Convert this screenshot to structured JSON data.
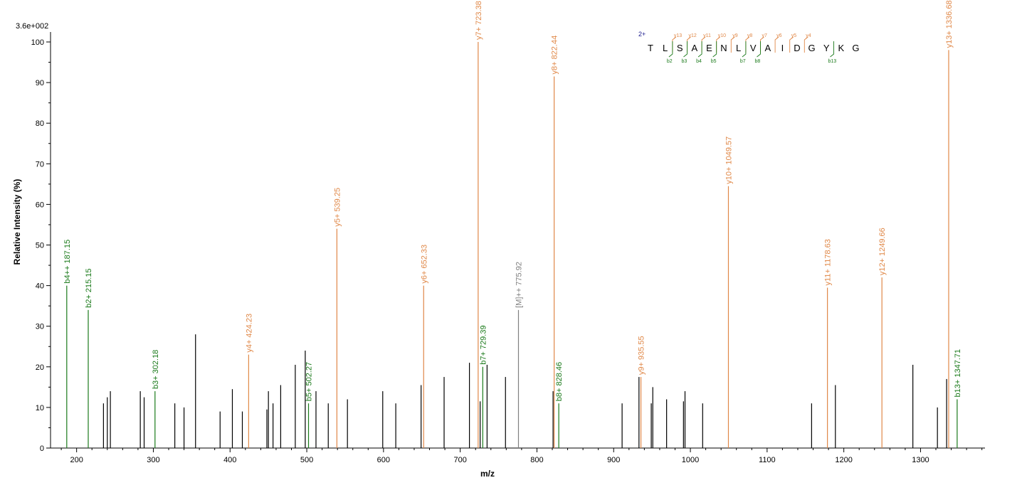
{
  "chart_data": {
    "type": "bar",
    "max_intensity_label": "3.6e+002",
    "xlabel": "m/z",
    "ylabel": "Relative   Intensity (%)",
    "xlim": [
      166,
      1384
    ],
    "ylim": [
      0,
      100
    ],
    "x_ticks": [
      200,
      300,
      400,
      500,
      600,
      700,
      800,
      900,
      1000,
      1100,
      1200,
      1300
    ],
    "y_ticks": [
      0,
      10,
      20,
      30,
      40,
      50,
      60,
      70,
      80,
      90,
      100
    ],
    "colors": {
      "b": "#1a7a1a",
      "y": "#e08848",
      "precursor": "#808080",
      "other": "#000000"
    },
    "labeled_peaks": [
      {
        "mz": 187.15,
        "intensity": 40,
        "type": "b",
        "label": "b4++ 187.15"
      },
      {
        "mz": 215.15,
        "intensity": 34,
        "type": "b",
        "label": "b2+ 215.15"
      },
      {
        "mz": 302.18,
        "intensity": 14,
        "type": "b",
        "label": "b3+ 302.18"
      },
      {
        "mz": 424.23,
        "intensity": 23,
        "type": "y",
        "label": "y4+ 424.23"
      },
      {
        "mz": 502.27,
        "intensity": 11,
        "type": "b",
        "label": "b5+ 502.27"
      },
      {
        "mz": 539.25,
        "intensity": 54,
        "type": "y",
        "label": "y5+ 539.25"
      },
      {
        "mz": 652.33,
        "intensity": 40,
        "type": "y",
        "label": "y6+ 652.33"
      },
      {
        "mz": 723.38,
        "intensity": 100,
        "type": "y",
        "label": "y7+ 723.38"
      },
      {
        "mz": 729.39,
        "intensity": 20,
        "type": "b",
        "label": "b7+ 729.39"
      },
      {
        "mz": 775.92,
        "intensity": 34,
        "type": "precursor",
        "label": "[M]++ 775.92"
      },
      {
        "mz": 822.44,
        "intensity": 91.5,
        "type": "y",
        "label": "y8+ 822.44"
      },
      {
        "mz": 828.46,
        "intensity": 11,
        "type": "b",
        "label": "b8+ 828.46"
      },
      {
        "mz": 935.55,
        "intensity": 17.5,
        "type": "y",
        "label": "y9+ 935.55"
      },
      {
        "mz": 1049.57,
        "intensity": 64.5,
        "type": "y",
        "label": "y10+ 1049.57"
      },
      {
        "mz": 1178.63,
        "intensity": 39.5,
        "type": "y",
        "label": "y11+ 1178.63"
      },
      {
        "mz": 1249.66,
        "intensity": 42,
        "type": "y",
        "label": "y12+ 1249.66"
      },
      {
        "mz": 1336.68,
        "intensity": 98,
        "type": "y",
        "label": "y13+ 1336.68"
      },
      {
        "mz": 1347.71,
        "intensity": 12,
        "type": "b",
        "label": "b13+ 1347.71"
      }
    ],
    "unlabeled_peaks": [
      [
        235,
        11
      ],
      [
        240,
        12.5
      ],
      [
        244,
        14
      ],
      [
        283,
        14
      ],
      [
        288,
        12.5
      ],
      [
        328,
        11
      ],
      [
        340,
        10
      ],
      [
        355,
        28
      ],
      [
        387,
        9
      ],
      [
        403,
        14.5
      ],
      [
        416,
        9
      ],
      [
        448,
        9.5
      ],
      [
        450,
        14
      ],
      [
        456,
        11
      ],
      [
        466,
        15.5
      ],
      [
        485,
        20.5
      ],
      [
        498,
        24
      ],
      [
        512,
        14
      ],
      [
        528,
        11
      ],
      [
        553,
        12
      ],
      [
        599,
        14
      ],
      [
        616,
        11
      ],
      [
        649,
        15.5
      ],
      [
        679,
        17.5
      ],
      [
        712,
        21
      ],
      [
        726,
        11.5
      ],
      [
        735,
        20.5
      ],
      [
        759,
        17.5
      ],
      [
        821,
        14
      ],
      [
        911,
        11
      ],
      [
        933,
        17.5
      ],
      [
        949,
        11
      ],
      [
        951,
        15
      ],
      [
        969,
        12
      ],
      [
        991,
        11.5
      ],
      [
        993,
        14
      ],
      [
        1016,
        11
      ],
      [
        1158,
        11
      ],
      [
        1189,
        15.5
      ],
      [
        1290,
        20.5
      ],
      [
        1322,
        10
      ],
      [
        1334,
        17
      ]
    ]
  },
  "sequence_annotation": {
    "charge": "2+",
    "residues": [
      "T",
      "L",
      "S",
      "A",
      "E",
      "N",
      "L",
      "V",
      "A",
      "I",
      "D",
      "G",
      "Y",
      "K",
      "G"
    ],
    "y_ions": [
      {
        "after": 2,
        "label": "y13"
      },
      {
        "after": 3,
        "label": "y12"
      },
      {
        "after": 4,
        "label": "y11"
      },
      {
        "after": 5,
        "label": "y10"
      },
      {
        "after": 6,
        "label": "y9"
      },
      {
        "after": 7,
        "label": "y8"
      },
      {
        "after": 8,
        "label": "y7"
      },
      {
        "after": 9,
        "label": "y6"
      },
      {
        "after": 10,
        "label": "y5"
      },
      {
        "after": 11,
        "label": "y4"
      }
    ],
    "b_ions": [
      {
        "after": 2,
        "label": "b2"
      },
      {
        "after": 3,
        "label": "b3"
      },
      {
        "after": 4,
        "label": "b4"
      },
      {
        "after": 5,
        "label": "b5"
      },
      {
        "after": 7,
        "label": "b7"
      },
      {
        "after": 8,
        "label": "b8"
      },
      {
        "after": 13,
        "label": "b13"
      }
    ]
  }
}
